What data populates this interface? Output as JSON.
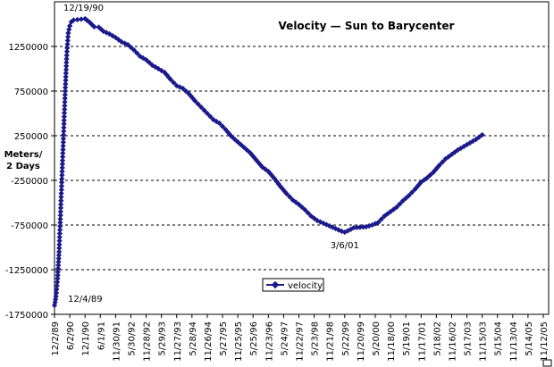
{
  "chart_data": {
    "type": "line",
    "title": "Velocity — Sun to Barycenter",
    "ylabel_lines": [
      "Meters/",
      "2 Days"
    ],
    "xlabel": "",
    "ylim": [
      -1750000,
      1750000
    ],
    "yticks": [
      -1750000,
      -1250000,
      -750000,
      -250000,
      250000,
      750000,
      1250000
    ],
    "ytick_labels": [
      "-1750000",
      "-1250000",
      "-750000",
      "-250000",
      "250000",
      "750000",
      "1250000"
    ],
    "xtick_labels": [
      "12/2/89",
      "6/2/90",
      "12/1/90",
      "6/1/91",
      "11/30/91",
      "5/30/92",
      "11/28/92",
      "5/29/93",
      "11/27/93",
      "5/28/94",
      "11/26/94",
      "5/27/95",
      "11/25/95",
      "5/25/96",
      "11/23/96",
      "5/24/97",
      "11/22/97",
      "5/23/98",
      "11/21/98",
      "5/22/99",
      "11/20/99",
      "5/20/00",
      "11/18/00",
      "5/19/01",
      "11/17/01",
      "5/18/02",
      "11/16/02",
      "5/17/03",
      "11/15/03",
      "5/15/04",
      "11/13/04",
      "5/14/05",
      "11/12/05"
    ],
    "grid": true,
    "legend": "bottom-center",
    "series": [
      {
        "name": "velocity",
        "color": "#1a1a8c",
        "points": [
          [
            0,
            -1650000
          ],
          [
            0.1,
            -1550000
          ],
          [
            0.2,
            -1350000
          ],
          [
            0.3,
            -1050000
          ],
          [
            0.4,
            -600000
          ],
          [
            0.5,
            -150000
          ],
          [
            0.6,
            300000
          ],
          [
            0.7,
            750000
          ],
          [
            0.8,
            1150000
          ],
          [
            0.9,
            1400000
          ],
          [
            1.0,
            1480000
          ],
          [
            1.1,
            1525000
          ],
          [
            1.25,
            1545000
          ],
          [
            1.5,
            1550000
          ],
          [
            1.75,
            1555000
          ],
          [
            2.0,
            1560000
          ],
          [
            2.3,
            1520000
          ],
          [
            2.6,
            1470000
          ],
          [
            2.9,
            1465000
          ],
          [
            3.2,
            1420000
          ],
          [
            3.6,
            1390000
          ],
          [
            4.0,
            1350000
          ],
          [
            4.4,
            1300000
          ],
          [
            4.8,
            1270000
          ],
          [
            5.2,
            1210000
          ],
          [
            5.6,
            1140000
          ],
          [
            6.0,
            1100000
          ],
          [
            6.4,
            1040000
          ],
          [
            6.8,
            1000000
          ],
          [
            7.2,
            960000
          ],
          [
            7.6,
            880000
          ],
          [
            8.0,
            810000
          ],
          [
            8.4,
            780000
          ],
          [
            8.8,
            720000
          ],
          [
            9.2,
            640000
          ],
          [
            9.6,
            570000
          ],
          [
            10.0,
            500000
          ],
          [
            10.4,
            430000
          ],
          [
            10.8,
            390000
          ],
          [
            11.2,
            320000
          ],
          [
            11.6,
            240000
          ],
          [
            12.0,
            180000
          ],
          [
            12.4,
            120000
          ],
          [
            12.8,
            60000
          ],
          [
            13.2,
            -20000
          ],
          [
            13.6,
            -100000
          ],
          [
            14.0,
            -150000
          ],
          [
            14.4,
            -230000
          ],
          [
            14.8,
            -320000
          ],
          [
            15.2,
            -400000
          ],
          [
            15.6,
            -470000
          ],
          [
            16.0,
            -520000
          ],
          [
            16.4,
            -580000
          ],
          [
            16.8,
            -650000
          ],
          [
            17.2,
            -700000
          ],
          [
            17.6,
            -730000
          ],
          [
            18.0,
            -760000
          ],
          [
            18.4,
            -790000
          ],
          [
            18.8,
            -820000
          ],
          [
            19.0,
            -830000
          ],
          [
            19.2,
            -815000
          ],
          [
            19.6,
            -780000
          ],
          [
            20.0,
            -775000
          ],
          [
            20.4,
            -770000
          ],
          [
            20.8,
            -750000
          ],
          [
            21.2,
            -720000
          ],
          [
            21.6,
            -650000
          ],
          [
            22.0,
            -600000
          ],
          [
            22.4,
            -550000
          ],
          [
            22.8,
            -480000
          ],
          [
            23.2,
            -420000
          ],
          [
            23.6,
            -350000
          ],
          [
            24.0,
            -270000
          ],
          [
            24.4,
            -220000
          ],
          [
            24.8,
            -160000
          ],
          [
            25.2,
            -80000
          ],
          [
            25.6,
            -10000
          ],
          [
            26.0,
            40000
          ],
          [
            26.4,
            90000
          ],
          [
            26.8,
            130000
          ],
          [
            27.2,
            170000
          ],
          [
            27.6,
            210000
          ],
          [
            28.0,
            260000
          ]
        ]
      }
    ],
    "annotations": [
      {
        "text": "12/19/90",
        "at": [
          1.9,
          1560000
        ]
      },
      {
        "text": "12/4/89",
        "at": [
          0,
          -1650000
        ]
      },
      {
        "text": "3/6/01",
        "at": [
          19.0,
          -830000
        ]
      }
    ]
  }
}
